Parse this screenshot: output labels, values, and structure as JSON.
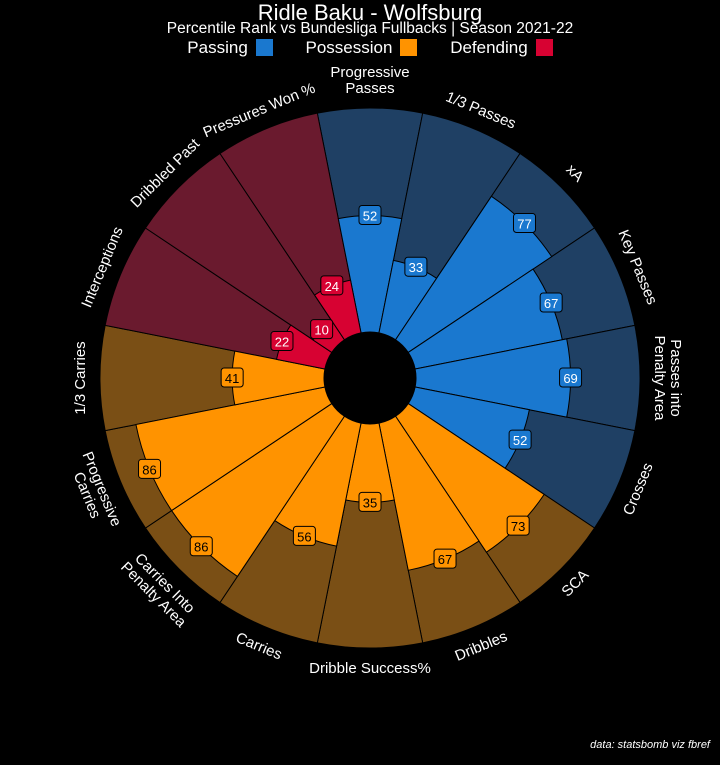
{
  "chart_data": {
    "type": "pie",
    "subtype": "polar-bar (pizza)",
    "title": "Ridle Baku - Wolfsburg",
    "subtitle": "Percentile Rank vs Bundesliga Fullbacks | Season 2021-22",
    "legend": [
      {
        "label": "Passing",
        "color": "#1A78CF",
        "bg": "#1F4064"
      },
      {
        "label": "Possession",
        "color": "#FF9300",
        "bg": "#7A4F15"
      },
      {
        "label": "Defending",
        "color": "#D70232",
        "bg": "#6A1A2E"
      }
    ],
    "range": [
      0,
      100
    ],
    "categories": [
      {
        "label": "Progressive\nPasses",
        "value": 52,
        "group": 0
      },
      {
        "label": "1/3 Passes",
        "value": 33,
        "group": 0
      },
      {
        "label": "xA",
        "value": 77,
        "group": 0
      },
      {
        "label": "Key Passes",
        "value": 67,
        "group": 0
      },
      {
        "label": "Passes into\nPenalty Area",
        "value": 69,
        "group": 0
      },
      {
        "label": "Crosses",
        "value": 52,
        "group": 0
      },
      {
        "label": "SCA",
        "value": 73,
        "group": 1
      },
      {
        "label": "Dribbles",
        "value": 67,
        "group": 1
      },
      {
        "label": "Dribble Success%",
        "value": 35,
        "group": 1
      },
      {
        "label": "Carries",
        "value": 56,
        "group": 1
      },
      {
        "label": "Carries Into\nPenalty Area",
        "value": 86,
        "group": 1
      },
      {
        "label": "Progressive\nCarries",
        "value": 86,
        "group": 1
      },
      {
        "label": "1/3 Carries",
        "value": 41,
        "group": 1
      },
      {
        "label": "Interceptions",
        "value": 22,
        "group": 2
      },
      {
        "label": "Dribbled Past",
        "value": 10,
        "group": 2
      },
      {
        "label": "Pressures Won %",
        "value": 24,
        "group": 2
      }
    ]
  },
  "footer": "data: statsbomb viz fbref"
}
